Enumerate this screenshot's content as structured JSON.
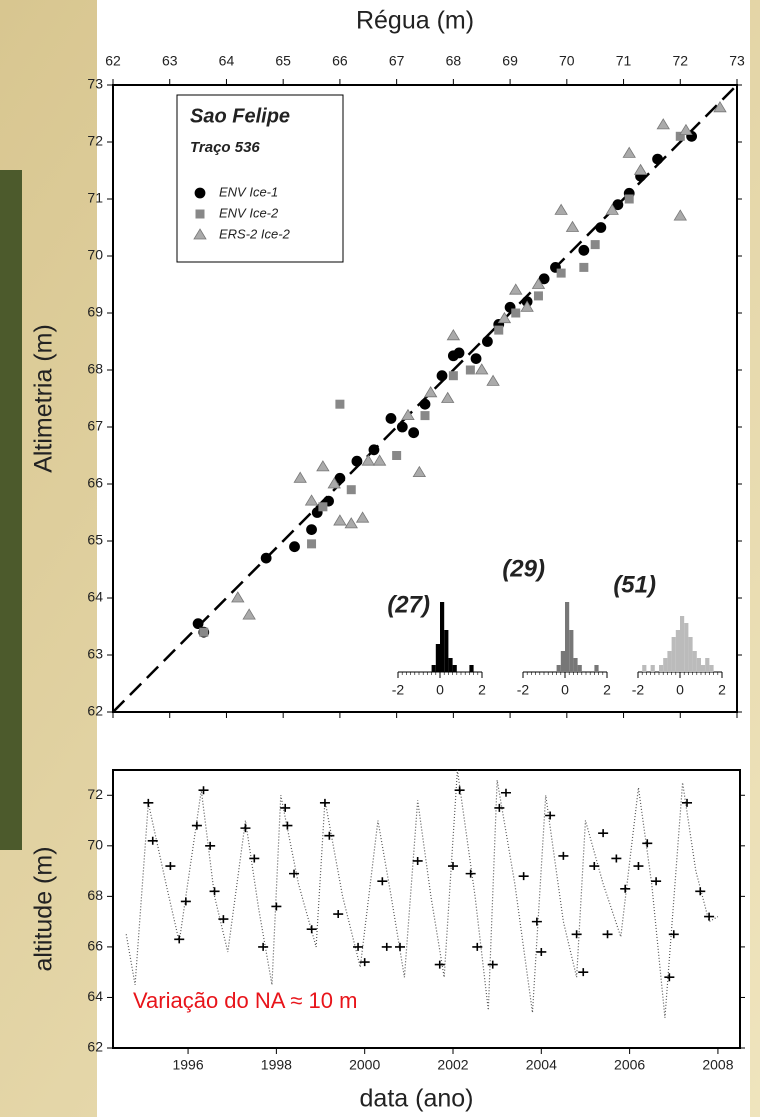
{
  "chart_data": [
    {
      "type": "scatter",
      "xlabel": "Régua (m)",
      "ylabel": "Altimetria (m)",
      "xlim": [
        62,
        73
      ],
      "ylim": [
        62,
        73
      ],
      "xticks": [
        62,
        63,
        64,
        65,
        66,
        67,
        68,
        69,
        70,
        71,
        72,
        73
      ],
      "yticks": [
        62,
        63,
        64,
        65,
        66,
        67,
        68,
        69,
        70,
        71,
        72,
        73
      ],
      "legend_title": "Sao Felipe",
      "legend_subtitle": "Traço 536",
      "series": [
        {
          "name": "ENV Ice-1",
          "color": "#000000",
          "marker": "circle",
          "x": [
            63.5,
            63.6,
            64.7,
            65.2,
            65.5,
            65.6,
            65.8,
            66,
            66.3,
            66.6,
            66.9,
            67.1,
            67.3,
            67.5,
            67.8,
            68,
            68.1,
            68.4,
            68.6,
            68.8,
            69,
            69.3,
            69.6,
            69.8,
            70.3,
            70.6,
            70.9,
            71.1,
            71.3,
            71.6,
            72.2
          ],
          "values": [
            63.55,
            63.4,
            64.7,
            64.9,
            65.2,
            65.5,
            65.7,
            66.1,
            66.4,
            66.6,
            67.15,
            67.0,
            66.9,
            67.4,
            67.9,
            68.25,
            68.3,
            68.2,
            68.5,
            68.8,
            69.1,
            69.2,
            69.6,
            69.8,
            70.1,
            70.5,
            70.9,
            71.1,
            71.4,
            71.7,
            72.1
          ]
        },
        {
          "name": "ENV Ice-2",
          "color": "#888888",
          "marker": "square",
          "x": [
            63.6,
            65.5,
            66,
            65.7,
            66.2,
            67.0,
            67.5,
            68,
            68.3,
            68.8,
            69.1,
            69.5,
            69.9,
            70.3,
            70.5,
            71.1,
            72
          ],
          "values": [
            63.4,
            64.95,
            67.4,
            65.6,
            65.9,
            66.5,
            67.2,
            67.9,
            68.0,
            68.7,
            69.0,
            69.3,
            69.7,
            69.8,
            70.2,
            71.0,
            72.1
          ]
        },
        {
          "name": "ERS-2 Ice-2",
          "color": "#aaaaaa",
          "marker": "triangle",
          "x": [
            64.2,
            64.4,
            65.3,
            65.5,
            65.7,
            65.9,
            66,
            66.2,
            66.4,
            66.5,
            66.7,
            67.2,
            67.4,
            67.6,
            67.9,
            68,
            68.5,
            68.7,
            68.9,
            69.1,
            69.3,
            69.5,
            69.9,
            70.1,
            70.8,
            71.1,
            71.3,
            71.7,
            72,
            72.1,
            72.7
          ],
          "values": [
            64.0,
            63.7,
            66.1,
            65.7,
            66.3,
            66.0,
            65.35,
            65.3,
            65.4,
            66.4,
            66.4,
            67.2,
            66.2,
            67.6,
            67.5,
            68.6,
            68.0,
            67.8,
            68.9,
            69.4,
            69.1,
            69.5,
            70.8,
            70.5,
            70.8,
            71.8,
            71.5,
            72.3,
            70.7,
            72.2,
            72.6
          ]
        }
      ]
    },
    {
      "type": "histogram",
      "title": "(27)",
      "color": "#000000",
      "xlim": [
        -2,
        2
      ],
      "xticks": [
        -2,
        0,
        2
      ],
      "bins": [
        -2,
        -1.8,
        -1.6,
        -1.4,
        -1.2,
        -1,
        -0.8,
        -0.6,
        -0.4,
        -0.2,
        0,
        0.2,
        0.4,
        0.6,
        0.8,
        1,
        1.2,
        1.4,
        1.6,
        1.8,
        2
      ],
      "counts": [
        0,
        0,
        0,
        0,
        0,
        0,
        0,
        0,
        1,
        4,
        10,
        6,
        2,
        1,
        0,
        0,
        0,
        1,
        0,
        0
      ]
    },
    {
      "type": "histogram",
      "title": "(29)",
      "color": "#777777",
      "xlim": [
        -2,
        2
      ],
      "xticks": [
        -2,
        0,
        2
      ],
      "bins": [
        -2,
        -1.8,
        -1.6,
        -1.4,
        -1.2,
        -1,
        -0.8,
        -0.6,
        -0.4,
        -0.2,
        0,
        0.2,
        0.4,
        0.6,
        0.8,
        1,
        1.2,
        1.4,
        1.6,
        1.8,
        2
      ],
      "counts": [
        0,
        0,
        0,
        0,
        0,
        0,
        0,
        0,
        1,
        3,
        10,
        6,
        2,
        1,
        0,
        0,
        0,
        1,
        0,
        0
      ]
    },
    {
      "type": "histogram",
      "title": "(51)",
      "color": "#bbbbbb",
      "xlim": [
        -2,
        2
      ],
      "xticks": [
        -2,
        0,
        2
      ],
      "bins": [
        -2,
        -1.8,
        -1.6,
        -1.4,
        -1.2,
        -1,
        -0.8,
        -0.6,
        -0.4,
        -0.2,
        0,
        0.2,
        0.4,
        0.6,
        0.8,
        1,
        1.2,
        1.4,
        1.6,
        1.8,
        2
      ],
      "counts": [
        0,
        1,
        0,
        1,
        0,
        1,
        2,
        3,
        5,
        6,
        8,
        7,
        5,
        3,
        2,
        1,
        2,
        1,
        0,
        0
      ]
    },
    {
      "type": "line",
      "xlabel": "data (ano)",
      "ylabel": "altitude (m)",
      "annotation": "Variação do NA ≈ 10 m",
      "xlim": [
        1994.3,
        2008.5
      ],
      "ylim": [
        62,
        73
      ],
      "xticks": [
        1996,
        1998,
        2000,
        2002,
        2004,
        2006,
        2008
      ],
      "yticks": [
        62,
        64,
        66,
        68,
        70,
        72
      ],
      "series": [
        {
          "color": "#555555",
          "style": "dotted",
          "x": [
            1994.6,
            1994.8,
            1995.1,
            1995.5,
            1995.8,
            1996.3,
            1996.6,
            1996.9,
            1997.3,
            1997.6,
            1997.9,
            1998.1,
            1998.5,
            1998.9,
            1999.1,
            1999.5,
            1999.9,
            2000.3,
            2000.6,
            2000.9,
            2001.2,
            2001.5,
            2001.8,
            2002.1,
            2002.5,
            2002.8,
            2003.0,
            2003.4,
            2003.8,
            2004.1,
            2004.5,
            2004.8,
            2005.0,
            2005.4,
            2005.8,
            2006.2,
            2006.5,
            2006.8,
            2007.2,
            2007.5,
            2007.8,
            2008.0
          ],
          "values": [
            66.5,
            64.5,
            71.7,
            68.5,
            66.2,
            72.2,
            68,
            65.8,
            71,
            67.5,
            64.5,
            72,
            68.5,
            66,
            71.8,
            68,
            65.2,
            71,
            68,
            64.8,
            71.8,
            68,
            64.8,
            73,
            68,
            63.5,
            72.6,
            68.5,
            63.4,
            72,
            67,
            64.8,
            71,
            68.5,
            66.4,
            72.3,
            68.5,
            63.2,
            72.5,
            69,
            67,
            67.2
          ]
        },
        {
          "color": "#000000",
          "style": "markers",
          "x": [
            1995.1,
            1995.2,
            1995.6,
            1995.8,
            1995.95,
            1996.2,
            1996.35,
            1996.5,
            1996.6,
            1996.8,
            1997.3,
            1997.5,
            1997.7,
            1998.0,
            1998.2,
            1998.25,
            1998.4,
            1998.8,
            1999.1,
            1999.2,
            1999.4,
            1999.85,
            2000.0,
            2000.4,
            2000.5,
            2000.8,
            2001.2,
            2001.7,
            2002.0,
            2002.15,
            2002.4,
            2002.55,
            2002.9,
            2003.05,
            2003.2,
            2003.6,
            2003.9,
            2004.0,
            2004.2,
            2004.5,
            2004.8,
            2004.95,
            2005.2,
            2005.4,
            2005.5,
            2005.7,
            2005.9,
            2006.2,
            2006.4,
            2006.6,
            2006.9,
            2007.0,
            2007.3,
            2007.6,
            2007.8
          ],
          "values": [
            71.7,
            70.2,
            69.2,
            66.3,
            67.8,
            70.8,
            72.2,
            70,
            68.2,
            67.1,
            70.7,
            69.5,
            66,
            67.6,
            71.5,
            70.8,
            68.9,
            66.7,
            71.7,
            70.4,
            67.3,
            66,
            65.4,
            68.6,
            66,
            66,
            69.4,
            65.3,
            69.2,
            72.2,
            68.9,
            66,
            65.3,
            71.5,
            72.1,
            68.8,
            67,
            65.8,
            71.2,
            69.6,
            66.5,
            65,
            69.2,
            70.5,
            66.5,
            69.5,
            68.3,
            69.2,
            70.1,
            68.6,
            64.8,
            66.5,
            71.7,
            68.2,
            67.2
          ]
        }
      ]
    }
  ]
}
